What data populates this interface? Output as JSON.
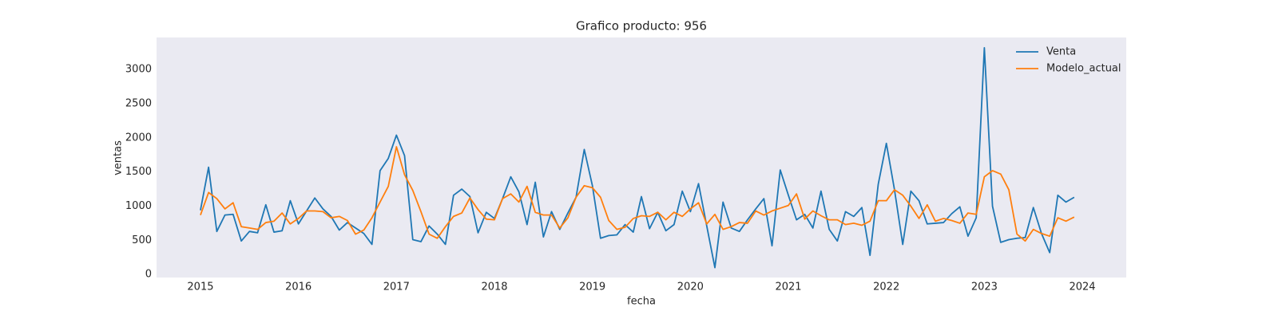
{
  "chart_data": {
    "type": "line",
    "title": "Grafico producto: 956",
    "xlabel": "fecha",
    "ylabel": "ventas",
    "x": [
      2015.0,
      2015.083,
      2015.167,
      2015.25,
      2015.333,
      2015.417,
      2015.5,
      2015.583,
      2015.667,
      2015.75,
      2015.833,
      2015.917,
      2016.0,
      2016.083,
      2016.167,
      2016.25,
      2016.333,
      2016.417,
      2016.5,
      2016.583,
      2016.667,
      2016.75,
      2016.833,
      2016.917,
      2017.0,
      2017.083,
      2017.167,
      2017.25,
      2017.333,
      2017.417,
      2017.5,
      2017.583,
      2017.667,
      2017.75,
      2017.833,
      2017.917,
      2018.0,
      2018.083,
      2018.167,
      2018.25,
      2018.333,
      2018.417,
      2018.5,
      2018.583,
      2018.667,
      2018.75,
      2018.833,
      2018.917,
      2019.0,
      2019.083,
      2019.167,
      2019.25,
      2019.333,
      2019.417,
      2019.5,
      2019.583,
      2019.667,
      2019.75,
      2019.833,
      2019.917,
      2020.0,
      2020.083,
      2020.167,
      2020.25,
      2020.333,
      2020.417,
      2020.5,
      2020.583,
      2020.667,
      2020.75,
      2020.833,
      2020.917,
      2021.0,
      2021.083,
      2021.167,
      2021.25,
      2021.333,
      2021.417,
      2021.5,
      2021.583,
      2021.667,
      2021.75,
      2021.833,
      2021.917,
      2022.0,
      2022.083,
      2022.167,
      2022.25,
      2022.333,
      2022.417,
      2022.5,
      2022.583,
      2022.667,
      2022.75,
      2022.833,
      2022.917,
      2023.0,
      2023.083,
      2023.167,
      2023.25,
      2023.333,
      2023.417,
      2023.5,
      2023.583,
      2023.667,
      2023.75,
      2023.833,
      2023.917
    ],
    "series": [
      {
        "name": "Venta",
        "color": "#1f77b4",
        "values": [
          940,
          1570,
          630,
          870,
          880,
          490,
          630,
          610,
          1020,
          620,
          640,
          1080,
          740,
          930,
          1120,
          960,
          850,
          650,
          760,
          680,
          600,
          440,
          1520,
          1700,
          2040,
          1740,
          510,
          480,
          710,
          590,
          440,
          1160,
          1250,
          1140,
          610,
          910,
          820,
          1110,
          1430,
          1210,
          730,
          1350,
          550,
          920,
          660,
          900,
          1130,
          1830,
          1300,
          530,
          570,
          580,
          730,
          620,
          1140,
          670,
          910,
          640,
          730,
          1220,
          920,
          1330,
          710,
          100,
          1060,
          680,
          630,
          800,
          960,
          1110,
          420,
          1530,
          1160,
          800,
          880,
          680,
          1220,
          660,
          490,
          920,
          850,
          980,
          280,
          1320,
          1920,
          1240,
          440,
          1220,
          1080,
          740,
          750,
          760,
          890,
          990,
          560,
          830,
          3320,
          1000,
          470,
          510,
          530,
          540,
          980,
          600,
          320,
          1160,
          1060,
          1130
        ]
      },
      {
        "name": "Modelo_actual",
        "color": "#ff7f0e",
        "values": [
          870,
          1200,
          1110,
          960,
          1050,
          700,
          680,
          660,
          760,
          780,
          900,
          740,
          820,
          930,
          930,
          920,
          830,
          850,
          790,
          590,
          650,
          830,
          1060,
          1290,
          1870,
          1460,
          1230,
          920,
          590,
          530,
          700,
          850,
          900,
          1120,
          950,
          810,
          800,
          1110,
          1180,
          1060,
          1290,
          910,
          870,
          870,
          680,
          830,
          1130,
          1300,
          1270,
          1130,
          790,
          660,
          690,
          820,
          860,
          850,
          910,
          800,
          910,
          850,
          960,
          1050,
          740,
          880,
          660,
          700,
          760,
          750,
          930,
          870,
          930,
          970,
          1010,
          1180,
          810,
          930,
          860,
          800,
          800,
          730,
          750,
          720,
          780,
          1080,
          1080,
          1240,
          1160,
          1000,
          820,
          1020,
          780,
          820,
          790,
          750,
          900,
          880,
          1430,
          1520,
          1470,
          1240,
          590,
          490,
          660,
          600,
          560,
          830,
          780,
          840
        ]
      }
    ],
    "xlim": [
      2014.552,
      2024.448
    ],
    "xticks": [
      2015,
      2016,
      2017,
      2018,
      2019,
      2020,
      2021,
      2022,
      2023,
      2024
    ],
    "ylim": [
      -45,
      3470
    ],
    "yticks": [
      0,
      500,
      1000,
      1500,
      2000,
      2500,
      3000
    ],
    "grid": false,
    "legend": "upper right"
  }
}
